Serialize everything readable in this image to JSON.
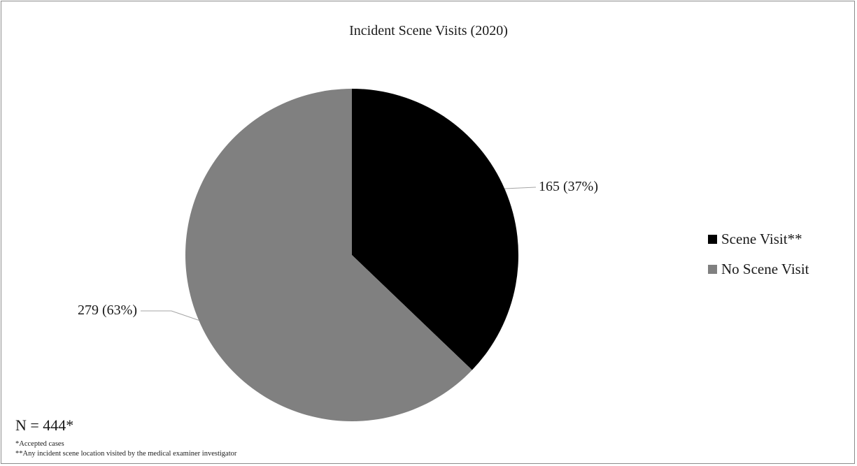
{
  "chart_data": {
    "type": "pie",
    "title": "Incident Scene Visits (2020)",
    "categories": [
      "Scene Visit**",
      "No Scene Visit"
    ],
    "values": [
      165,
      279
    ],
    "percent_labels": [
      "165 (37%)",
      "279 (63%)"
    ],
    "colors": [
      "#000000",
      "#808080"
    ],
    "start_angle": "12 o'clock",
    "direction": "clockwise",
    "legend_placement": "right"
  },
  "footnotes": {
    "n": "N = 444*",
    "accepted": "*Accepted cases",
    "definition": "**Any incident scene location visited by the medical examiner investigator"
  }
}
